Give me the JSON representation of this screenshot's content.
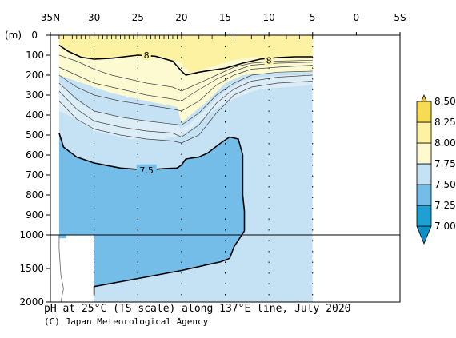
{
  "chart_data": {
    "type": "heatmap",
    "title": "pH at 25°C (TS scale) along 137°E line, July 2020",
    "credit": "(C) Japan Meteorological Agency",
    "x_axis": {
      "ticks": [
        {
          "value": 35,
          "label": "35N"
        },
        {
          "value": 30,
          "label": "30"
        },
        {
          "value": 25,
          "label": "25"
        },
        {
          "value": 20,
          "label": "20"
        },
        {
          "value": 15,
          "label": "15"
        },
        {
          "value": 10,
          "label": "10"
        },
        {
          "value": 5,
          "label": "5"
        },
        {
          "value": 0,
          "label": "0"
        },
        {
          "value": -5,
          "label": "5S"
        }
      ],
      "range": [
        35,
        -5
      ],
      "data_extent": [
        34,
        5
      ]
    },
    "y_axis": {
      "unit_label": "(m)",
      "upper_ticks": [
        0,
        100,
        200,
        300,
        400,
        500,
        600,
        700,
        800,
        900,
        1000
      ],
      "lower_ticks": [
        1500,
        2000
      ],
      "break_at": 1000,
      "range": [
        0,
        2000
      ]
    },
    "colorbar": {
      "levels": [
        7.0,
        7.25,
        7.5,
        7.75,
        8.0,
        8.25,
        8.5
      ],
      "labels": [
        "7.00",
        "7.25",
        "7.50",
        "7.75",
        "8.00",
        "8.25",
        "8.50"
      ],
      "colors": [
        "#1fa0d3",
        "#73bde8",
        "#c4e2f4",
        "#fdfad2",
        "#fcf2a2",
        "#f6dc53"
      ]
    },
    "contour_labels": [
      {
        "text": "8",
        "lat": 24.0,
        "depth": 100
      },
      {
        "text": "8",
        "lat": 10.0,
        "depth": 125
      },
      {
        "text": "7.5",
        "lat": 24.0,
        "depth": 675
      }
    ],
    "highlighted_levels": [
      "8.00",
      "7.50"
    ]
  }
}
